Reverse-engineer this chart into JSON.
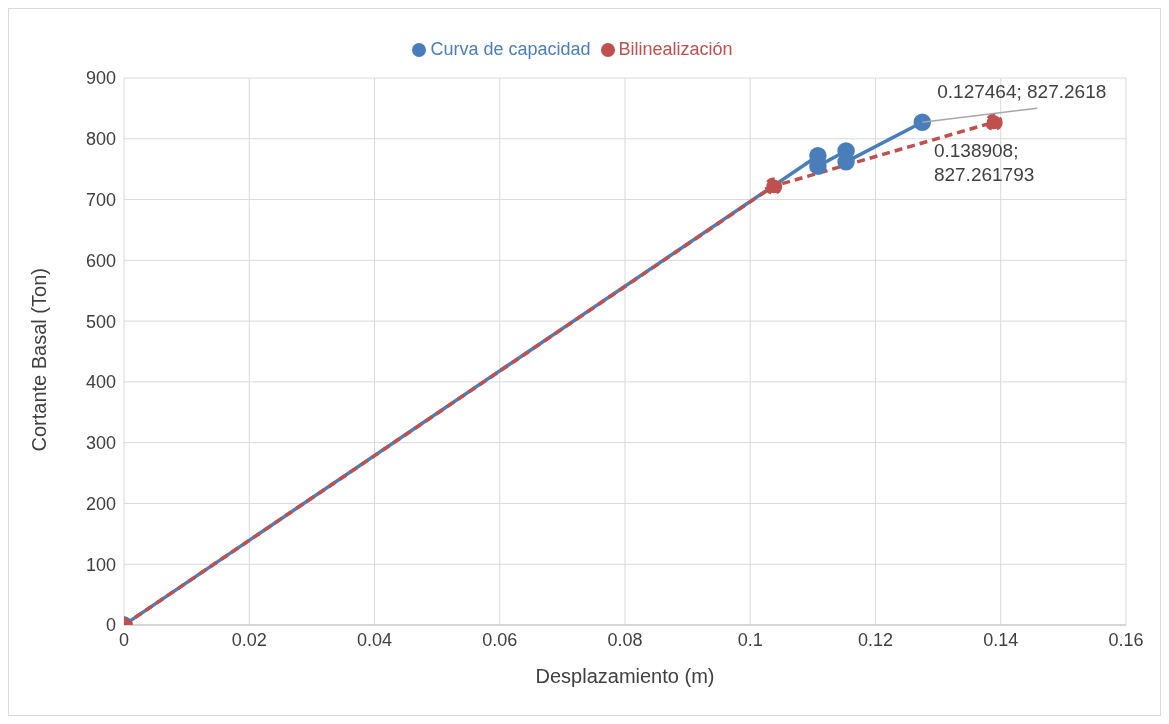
{
  "chart_data": {
    "type": "line",
    "xlabel": "Desplazamiento (m)",
    "ylabel": "Cortante Basal (Ton)",
    "series": [
      {
        "name": "Curva de capacidad",
        "color": "#4a7ebb",
        "x": [
          0,
          0.1108,
          0.1108,
          0.1153,
          0.1153,
          0.127464
        ],
        "values": [
          0,
          772,
          755,
          780,
          762,
          827.2618
        ],
        "value_labels": [
          null,
          null,
          null,
          null,
          null,
          "0.127464; 827.2618"
        ],
        "line_style": "solid"
      },
      {
        "name": "Bilinealización",
        "color": "#c0504d",
        "x": [
          0,
          0.1037,
          0.138908
        ],
        "values": [
          0,
          722,
          827.261793
        ],
        "value_labels": [
          null,
          null,
          "0.138908;\n827.261793"
        ],
        "line_style": "dashed"
      }
    ],
    "xlim": [
      0,
      0.16
    ],
    "xticks": [
      0,
      0.02,
      0.04,
      0.06,
      0.08,
      0.1,
      0.12,
      0.14,
      0.16
    ],
    "ylim": [
      0,
      900
    ],
    "yticks": [
      0,
      100,
      200,
      300,
      400,
      500,
      600,
      700,
      800,
      900
    ],
    "grid": true,
    "legend": "top",
    "marker": "circle"
  }
}
